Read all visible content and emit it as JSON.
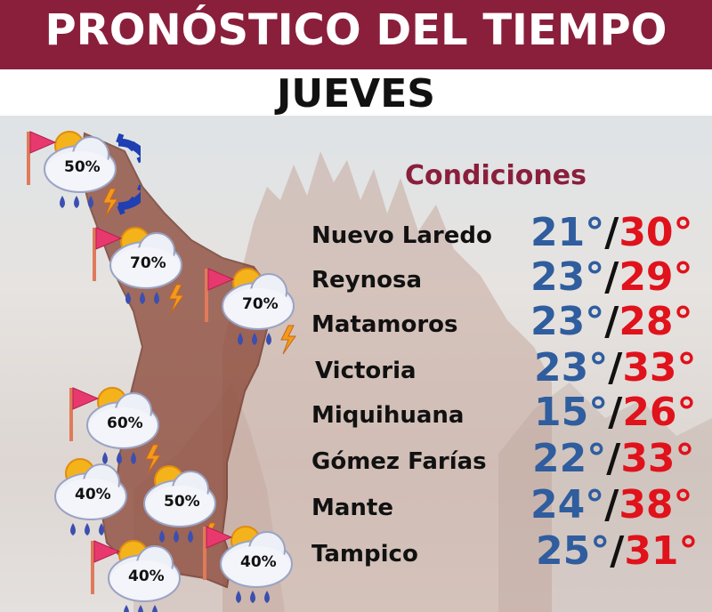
{
  "header": {
    "title": "PRONÓSTICO DEL TIEMPO",
    "day": "JUEVES"
  },
  "conditions": {
    "title": "Condiciones",
    "cities": [
      {
        "name": "Nuevo Laredo",
        "min": "21°",
        "sep": "/",
        "max": "30°"
      },
      {
        "name": "Reynosa",
        "min": "23°",
        "sep": "/",
        "max": "29°"
      },
      {
        "name": "Matamoros",
        "min": "23°",
        "sep": "/",
        "max": "28°"
      },
      {
        "name": "Victoria",
        "min": "23°",
        "sep": "/",
        "max": "33°"
      },
      {
        "name": "Miquihuana",
        "min": "15°",
        "sep": "/",
        "max": "26°"
      },
      {
        "name": "Gómez Farías",
        "min": "22°",
        "sep": "/",
        "max": "33°"
      },
      {
        "name": "Mante",
        "min": "24°",
        "sep": "/",
        "max": "38°"
      },
      {
        "name": "Tampico",
        "min": "25°",
        "sep": "/",
        "max": "31°"
      }
    ]
  },
  "map_icons": [
    {
      "label": "50%",
      "flag": true,
      "sun": true,
      "lightning": true,
      "gear": true
    },
    {
      "label": "70%",
      "flag": true,
      "sun": true,
      "lightning": true
    },
    {
      "label": "70%",
      "flag": true,
      "sun": true,
      "lightning": true
    },
    {
      "label": "60%",
      "flag": true,
      "sun": true,
      "lightning": true
    },
    {
      "label": "40%",
      "flag": false,
      "sun": true,
      "lightning": false
    },
    {
      "label": "50%",
      "flag": false,
      "sun": true,
      "lightning": true
    },
    {
      "label": "40%",
      "flag": true,
      "sun": true,
      "lightning": false
    },
    {
      "label": "40%",
      "flag": true,
      "sun": true,
      "lightning": false
    }
  ],
  "colors": {
    "brand": "#8a1f3c",
    "min_temp": "#2f5d9e",
    "max_temp": "#e0121b",
    "map_fill": "#8c4a3a"
  }
}
